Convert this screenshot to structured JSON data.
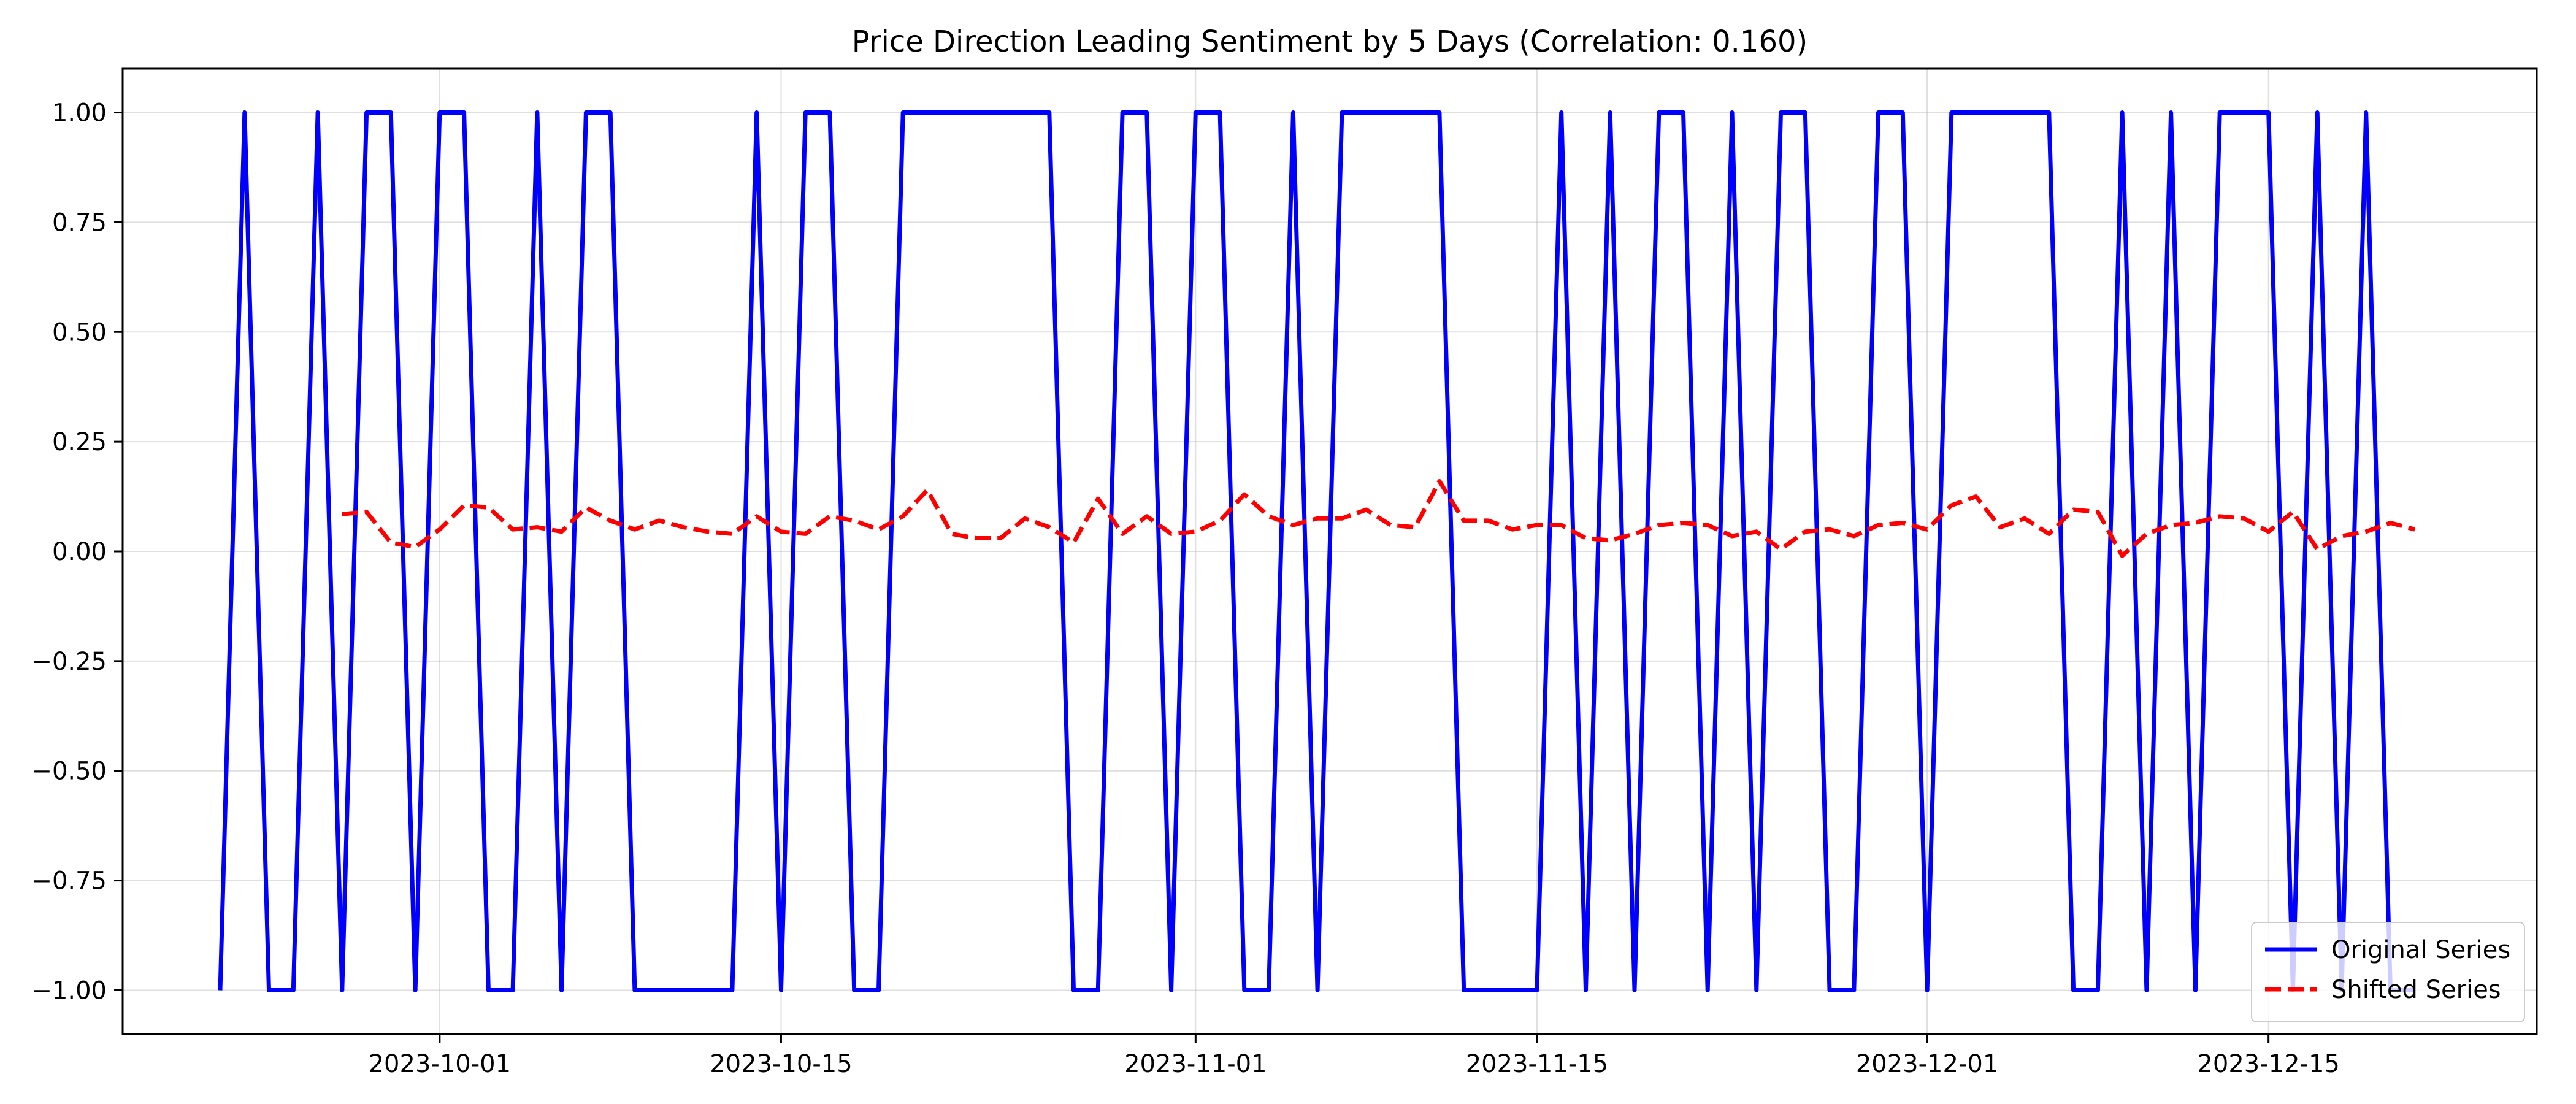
{
  "chart_data": {
    "type": "line",
    "title": "Price Direction Leading Sentiment by 5 Days (Correlation: 0.160)",
    "xlabel": "",
    "ylabel": "",
    "x_axis_type": "date",
    "xlim": [
      "2023-09-18",
      "2023-12-26"
    ],
    "ylim": [
      -1.1,
      1.1
    ],
    "grid": true,
    "legend_position": "lower-right",
    "x_ticks": [
      "2023-10-01",
      "2023-10-15",
      "2023-11-01",
      "2023-11-15",
      "2023-12-01",
      "2023-12-15"
    ],
    "y_ticks": [
      -1.0,
      -0.75,
      -0.5,
      -0.25,
      0.0,
      0.25,
      0.5,
      0.75,
      1.0
    ],
    "y_tick_labels": [
      "−1.00",
      "−0.75",
      "−0.50",
      "−0.25",
      "0.00",
      "0.25",
      "0.50",
      "0.75",
      "1.00"
    ],
    "series": [
      {
        "name": "Original Series",
        "color": "#0000ff",
        "line_style": "solid",
        "start": "2023-09-22",
        "values": [
          -1,
          1,
          -1,
          -1,
          1,
          -1,
          1,
          1,
          -1,
          1,
          1,
          -1,
          -1,
          1,
          -1,
          1,
          1,
          -1,
          -1,
          -1,
          -1,
          -1,
          1,
          -1,
          1,
          1,
          -1,
          -1,
          1,
          1,
          1,
          1,
          1,
          1,
          1,
          -1,
          -1,
          1,
          1,
          -1,
          1,
          1,
          -1,
          -1,
          1,
          -1,
          1,
          1,
          1,
          1,
          1,
          -1,
          -1,
          -1,
          -1,
          1,
          -1,
          1,
          -1,
          1,
          1,
          -1,
          1,
          -1,
          1,
          1,
          -1,
          -1,
          1,
          1,
          -1,
          1,
          1,
          1,
          1,
          1,
          -1,
          -1,
          1,
          -1,
          1,
          -1,
          1,
          1,
          1,
          -1,
          1,
          -1,
          1,
          -1,
          -1
        ]
      },
      {
        "name": "Shifted Series",
        "color": "#ff0000",
        "line_style": "dashed",
        "start": "2023-09-27",
        "values": [
          0.085,
          0.09,
          0.02,
          0.01,
          0.05,
          0.105,
          0.1,
          0.05,
          0.055,
          0.045,
          0.1,
          0.07,
          0.05,
          0.07,
          0.055,
          0.045,
          0.04,
          0.08,
          0.045,
          0.04,
          0.08,
          0.07,
          0.05,
          0.08,
          0.14,
          0.04,
          0.03,
          0.03,
          0.075,
          0.055,
          0.02,
          0.12,
          0.04,
          0.08,
          0.04,
          0.045,
          0.07,
          0.13,
          0.08,
          0.06,
          0.075,
          0.075,
          0.095,
          0.06,
          0.055,
          0.16,
          0.07,
          0.07,
          0.05,
          0.06,
          0.06,
          0.03,
          0.025,
          0.04,
          0.06,
          0.065,
          0.06,
          0.035,
          0.045,
          0.005,
          0.045,
          0.05,
          0.035,
          0.06,
          0.065,
          0.05,
          0.105,
          0.125,
          0.055,
          0.075,
          0.04,
          0.095,
          0.09,
          -0.01,
          0.04,
          0.06,
          0.065,
          0.08,
          0.075,
          0.045,
          0.09,
          0.005,
          0.035,
          0.045,
          0.065,
          0.05
        ]
      }
    ]
  }
}
